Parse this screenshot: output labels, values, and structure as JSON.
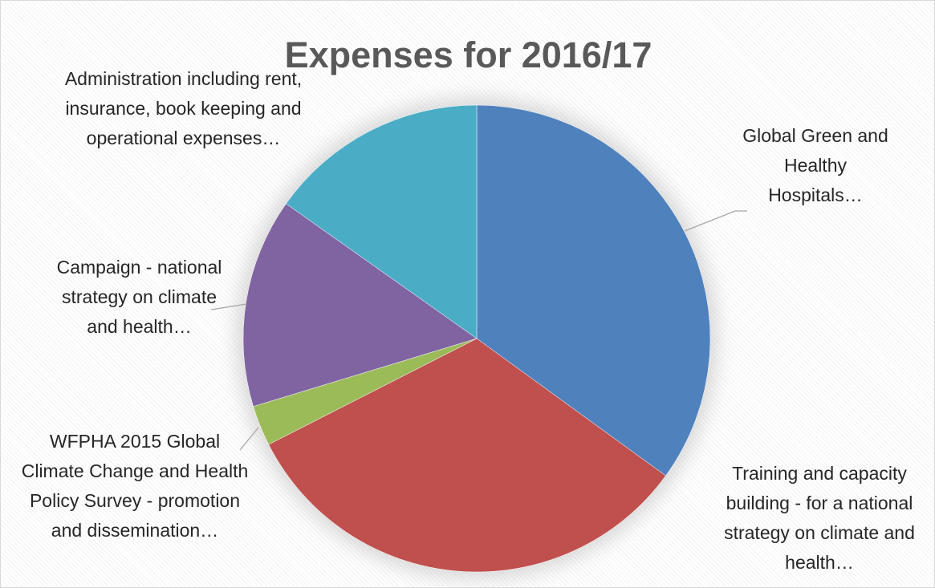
{
  "chart_data": {
    "type": "pie",
    "title": "Expenses for 2016/17",
    "categories": [
      "Global Green and Healthy Hospitals…",
      "Training and capacity building - for a national strategy on climate and health…",
      "WFPHA 2015 Global Climate Change and Health Policy Survey - promotion and dissemination…",
      "Campaign - national strategy on climate and health…",
      "Administration including rent, insurance, book keeping and operational expenses…"
    ],
    "values": [
      35,
      32.5,
      2.8,
      14.5,
      15.2
    ],
    "colors": [
      "#4f81bd",
      "#c0504d",
      "#9bbb59",
      "#8064a2",
      "#4bacc6"
    ]
  }
}
